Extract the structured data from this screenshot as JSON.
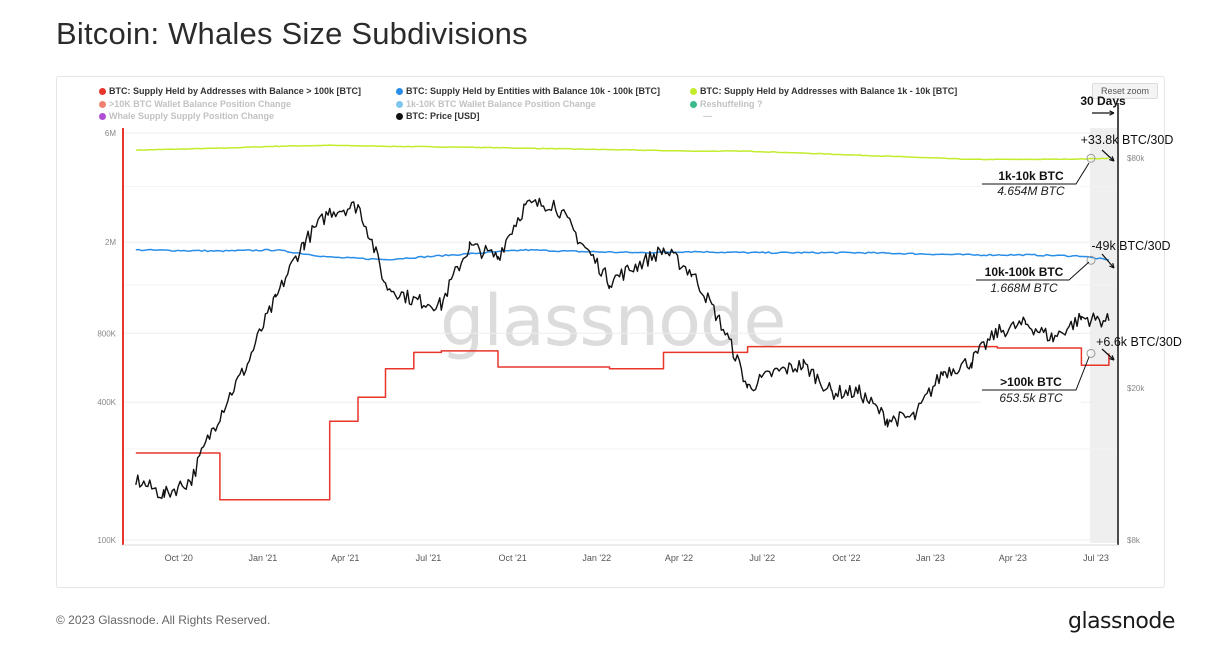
{
  "page": {
    "title": "Bitcoin: Whales Size Subdivisions",
    "copyright": "© 2023 Glassnode. All Rights Reserved.",
    "brand": "glassnode",
    "watermark": "glassnode",
    "reset_zoom": "Reset zoom"
  },
  "legend": [
    {
      "label": "BTC: Supply Held by Addresses with Balance > 100k [BTC]",
      "color": "#e8352b",
      "faded": false
    },
    {
      "label": "BTC: Supply Held by Entities with Balance 10k - 100k [BTC]",
      "color": "#2a8ee8",
      "faded": false
    },
    {
      "label": "BTC: Supply Held by Addresses with Balance 1k - 10k [BTC]",
      "color": "#c2ec2c",
      "faded": false
    },
    {
      "label": ">10K BTC Wallet Balance Position Change",
      "color": "#f08070",
      "faded": true
    },
    {
      "label": "1k-10K BTC Wallet Balance Position Change",
      "color": "#7ec6f0",
      "faded": true
    },
    {
      "label": "Reshuffeling ?",
      "color": "#3cba8c",
      "faded": true
    },
    {
      "label": "Whale Supply Supply Position Change",
      "color": "#b04fd6",
      "faded": true
    },
    {
      "label": "BTC: Price [USD]",
      "color": "#111111",
      "faded": false
    },
    {
      "label": "---",
      "color": "#ffffff",
      "faded": true
    }
  ],
  "annotations": {
    "window_label": "30 Days",
    "change_1k": "+33.8k BTC/30D",
    "change_10k": "-49k BTC/30D",
    "change_100k": "+6.6k BTC/30D",
    "cohort_1k_name": "1k-10k BTC",
    "cohort_1k_value": "4.654M BTC",
    "cohort_10k_name": "10k-100k BTC",
    "cohort_10k_value": "1.668M BTC",
    "cohort_100k_name": ">100k BTC",
    "cohort_100k_value": "653.5k BTC"
  },
  "chart_data": {
    "type": "line",
    "title": "Bitcoin: Whales Size Subdivisions",
    "x_ticks": [
      "Oct '20",
      "Jan '21",
      "Apr '21",
      "Jul '21",
      "Oct '21",
      "Jan '22",
      "Apr '22",
      "Jul '22",
      "Oct '22",
      "Jan '23",
      "Apr '23",
      "Jul '23"
    ],
    "x_range": [
      "2020-08",
      "2023-07"
    ],
    "left_axis": {
      "scale": "log",
      "ticks": [
        "100K",
        "400K",
        "800K",
        "2M",
        "6M"
      ],
      "unit": "BTC"
    },
    "right_axis": {
      "scale": "log",
      "ticks": [
        "$8k",
        "$20k",
        "$80k"
      ],
      "unit": "USD"
    },
    "grid": true,
    "legend_position": "top-left",
    "series": [
      {
        "name": "BTC: Supply Held by Addresses with Balance 1k - 10k [BTC]",
        "color": "#c2ec2c",
        "axis": "left",
        "x": [
          "2020-08",
          "2020-11",
          "2021-01",
          "2021-03",
          "2021-05",
          "2021-08",
          "2021-10",
          "2021-12",
          "2022-02",
          "2022-04",
          "2022-06",
          "2022-08",
          "2022-10",
          "2022-12",
          "2023-02",
          "2023-04",
          "2023-06",
          "2023-07"
        ],
        "values": [
          5.05,
          5.15,
          5.25,
          5.3,
          5.25,
          5.2,
          5.15,
          5.1,
          5.05,
          5.0,
          5.0,
          4.9,
          4.8,
          4.7,
          4.6,
          4.6,
          4.62,
          4.654
        ]
      },
      {
        "name": "BTC: Supply Held by Entities with Balance 10k - 100k [BTC]",
        "color": "#2a8ee8",
        "axis": "left",
        "x": [
          "2020-08",
          "2020-11",
          "2021-01",
          "2021-03",
          "2021-05",
          "2021-08",
          "2021-10",
          "2021-12",
          "2022-02",
          "2022-04",
          "2022-06",
          "2022-08",
          "2022-10",
          "2022-12",
          "2023-02",
          "2023-04",
          "2023-06",
          "2023-07"
        ],
        "values": [
          1.85,
          1.83,
          1.85,
          1.72,
          1.68,
          1.78,
          1.85,
          1.82,
          1.8,
          1.82,
          1.8,
          1.8,
          1.8,
          1.78,
          1.76,
          1.76,
          1.74,
          1.668
        ]
      },
      {
        "name": "BTC: Supply Held by Addresses with Balance > 100k [BTC]",
        "color": "#e8352b",
        "axis": "left",
        "x": [
          "2020-08",
          "2020-10",
          "2020-11",
          "2021-01",
          "2021-03",
          "2021-04",
          "2021-05",
          "2021-06",
          "2021-07",
          "2021-09",
          "2022-01",
          "2022-03",
          "2022-06",
          "2022-09",
          "2022-12",
          "2023-03",
          "2023-06",
          "2023-07"
        ],
        "values": [
          240,
          240,
          150,
          150,
          330,
          420,
          560,
          660,
          670,
          570,
          560,
          660,
          700,
          700,
          700,
          690,
          580,
          653.5
        ]
      },
      {
        "name": "BTC: Price [USD]",
        "color": "#111111",
        "axis": "right",
        "x": [
          "2020-08",
          "2020-09",
          "2020-10",
          "2020-11",
          "2020-12",
          "2021-01",
          "2021-02",
          "2021-03",
          "2021-04",
          "2021-05",
          "2021-06",
          "2021-07",
          "2021-08",
          "2021-09",
          "2021-10",
          "2021-11",
          "2021-12",
          "2022-01",
          "2022-02",
          "2022-03",
          "2022-04",
          "2022-05",
          "2022-06",
          "2022-07",
          "2022-08",
          "2022-09",
          "2022-10",
          "2022-11",
          "2022-12",
          "2023-01",
          "2023-02",
          "2023-03",
          "2023-04",
          "2023-05",
          "2023-06",
          "2023-07"
        ],
        "values": [
          11500,
          10500,
          11500,
          17000,
          23000,
          34000,
          48000,
          58000,
          60000,
          37000,
          34000,
          33000,
          47000,
          44000,
          60000,
          61000,
          48000,
          38000,
          42000,
          46000,
          40000,
          30000,
          20000,
          22000,
          23000,
          19500,
          19500,
          16500,
          16800,
          22000,
          23500,
          28000,
          29500,
          27000,
          30500,
          30000
        ]
      }
    ]
  }
}
